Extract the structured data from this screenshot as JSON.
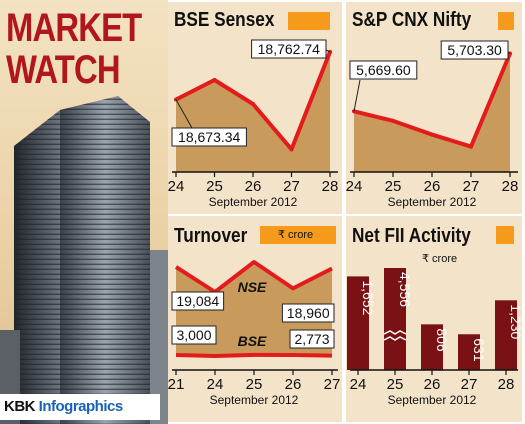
{
  "left": {
    "title_line1": "MARKET",
    "title_line2": "WATCH",
    "brand_prefix": "KBK ",
    "brand_suffix": "Infographics"
  },
  "colors": {
    "accent": "#f59a1b",
    "line": "#e41b1b",
    "fill": "#c89a5c",
    "panel_bg": "#f3e3c9",
    "bar": "#7a1115",
    "title_red": "#b0161b"
  },
  "chart_data": [
    {
      "id": "sensex",
      "type": "area",
      "title": "BSE Sensex",
      "xlabel": "September 2012",
      "categories": [
        "24",
        "25",
        "26",
        "27",
        "28"
      ],
      "series": [
        {
          "values": [
            18673.34,
            18710,
            18665,
            18580,
            18762.74
          ]
        }
      ],
      "data_labels": [
        {
          "index": 0,
          "text": "18,673.34"
        },
        {
          "index": 4,
          "text": "18,762.74"
        }
      ]
    },
    {
      "id": "nifty",
      "type": "area",
      "title": "S&P CNX Nifty",
      "xlabel": "September 2012",
      "categories": [
        "24",
        "25",
        "26",
        "27",
        "28"
      ],
      "series": [
        {
          "values": [
            5669.6,
            5664,
            5656,
            5649,
            5703.3
          ]
        }
      ],
      "data_labels": [
        {
          "index": 0,
          "text": "5,669.60"
        },
        {
          "index": 4,
          "text": "5,703.30"
        }
      ]
    },
    {
      "id": "turnover",
      "type": "line",
      "title": "Turnover",
      "unit": "₹ crore",
      "xlabel": "September 2012",
      "categories": [
        "21",
        "24",
        "25",
        "26",
        "27"
      ],
      "series": [
        {
          "name": "NSE",
          "values": [
            19084,
            17000,
            19500,
            17300,
            18960
          ]
        },
        {
          "name": "BSE",
          "values": [
            3000,
            2650,
            3050,
            3000,
            2773
          ]
        }
      ],
      "data_labels": [
        {
          "series": 0,
          "index": 0,
          "text": "19,084"
        },
        {
          "series": 0,
          "index": 4,
          "text": "18,960"
        },
        {
          "series": 1,
          "index": 0,
          "text": "3,000"
        },
        {
          "series": 1,
          "index": 4,
          "text": "2,773"
        }
      ]
    },
    {
      "id": "fii",
      "type": "bar",
      "title": "Net FII Activity",
      "unit": "₹ crore",
      "xlabel": "September 2012",
      "categories": [
        "24",
        "25",
        "26",
        "27",
        "28"
      ],
      "values": [
        1652,
        4556,
        806,
        631,
        1230
      ],
      "value_labels": [
        "1,652",
        "4,556",
        "806",
        "631",
        "1,230"
      ],
      "axis_break_index": 1
    }
  ]
}
